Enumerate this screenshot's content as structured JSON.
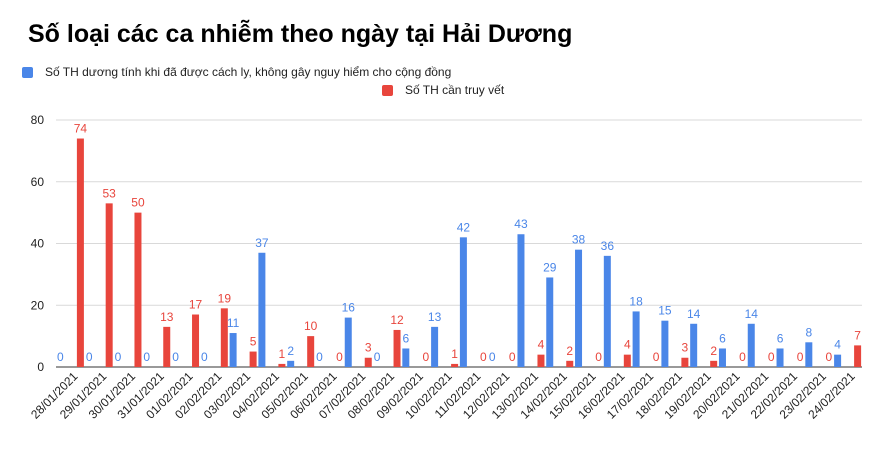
{
  "chart_data": {
    "type": "bar",
    "title": "Số loại các ca nhiễm theo ngày tại Hải Dương",
    "xlabel": "",
    "ylabel": "",
    "ylim": [
      0,
      80
    ],
    "yticks": [
      0,
      20,
      40,
      60,
      80
    ],
    "grid": true,
    "legend_position": "top-left",
    "categories": [
      "28/01/2021",
      "29/01/2021",
      "30/01/2021",
      "31/01/2021",
      "01/02/2021",
      "02/02/2021",
      "03/02/2021",
      "04/02/2021",
      "05/02/2021",
      "06/02/2021",
      "07/02/2021",
      "08/02/2021",
      "09/02/2021",
      "10/02/2021",
      "11/02/2021",
      "12/02/2021",
      "13/02/2021",
      "14/02/2021",
      "15/02/2021",
      "16/02/2021",
      "17/02/2021",
      "18/02/2021",
      "19/02/2021",
      "20/02/2021",
      "21/02/2021",
      "22/02/2021",
      "23/02/2021",
      "24/02/2021"
    ],
    "series": [
      {
        "name": "Số TH dương tính khi đã được cách ly, không gây nguy hiểm cho cộng đồng",
        "color": "#4a86e8",
        "values": [
          0,
          0,
          0,
          0,
          0,
          0,
          11,
          37,
          2,
          0,
          16,
          0,
          6,
          13,
          42,
          0,
          43,
          29,
          38,
          36,
          18,
          15,
          14,
          6,
          14,
          6,
          8,
          4
        ]
      },
      {
        "name": "Số TH cần truy vết",
        "color": "#e8453c",
        "values": [
          74,
          53,
          50,
          13,
          17,
          19,
          5,
          1,
          10,
          0,
          3,
          12,
          0,
          1,
          0,
          0,
          4,
          2,
          0,
          4,
          0,
          3,
          2,
          0,
          0,
          0,
          0,
          7
        ]
      }
    ]
  }
}
